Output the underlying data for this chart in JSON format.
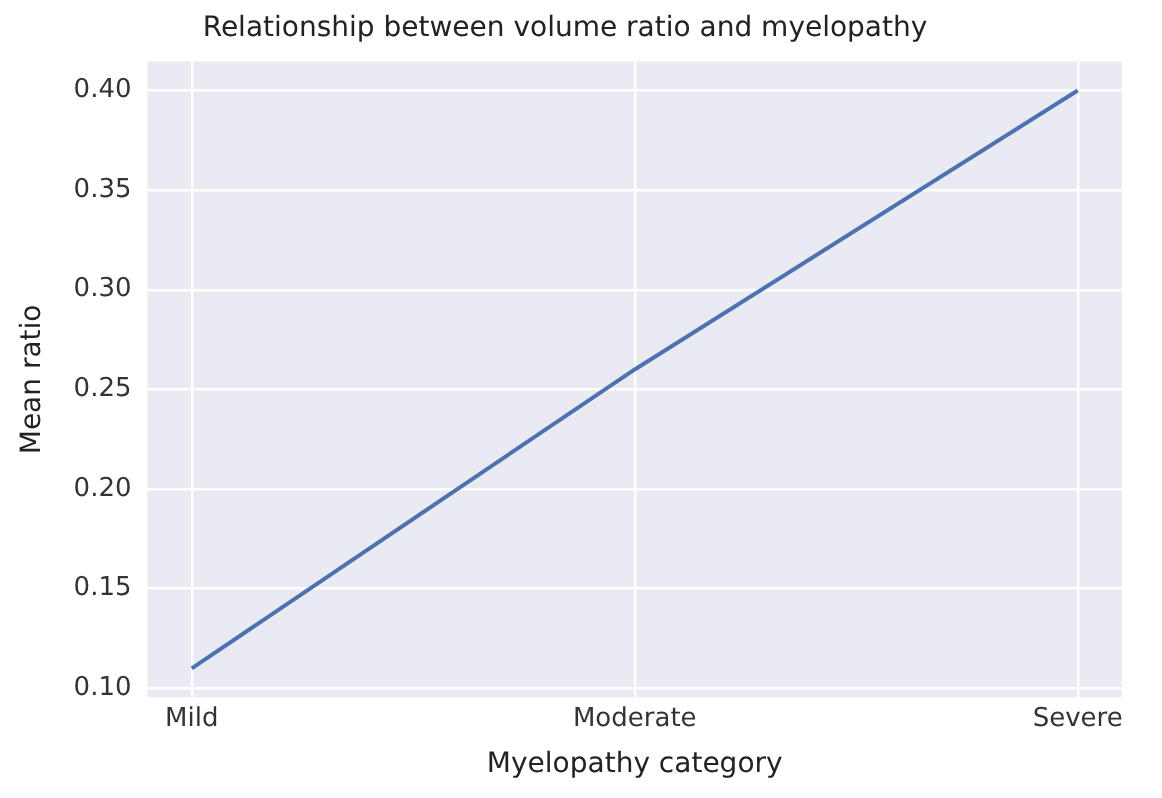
{
  "chart_data": {
    "type": "line",
    "title": "Relationship between volume ratio and myelopathy",
    "xlabel": "Myelopathy category",
    "ylabel": "Mean ratio",
    "categories": [
      "Mild",
      "Moderate",
      "Severe"
    ],
    "series": [
      {
        "color": "#4c72b0",
        "values": [
          0.11,
          0.26,
          0.4
        ]
      }
    ],
    "ylim": [
      0.0955,
      0.4145
    ],
    "yticks": [
      {
        "value": 0.1,
        "label": "0.10"
      },
      {
        "value": 0.15,
        "label": "0.15"
      },
      {
        "value": 0.2,
        "label": "0.20"
      },
      {
        "value": 0.25,
        "label": "0.25"
      },
      {
        "value": 0.3,
        "label": "0.30"
      },
      {
        "value": 0.35,
        "label": "0.35"
      },
      {
        "value": 0.4,
        "label": "0.40"
      }
    ],
    "grid": true,
    "legend": false,
    "marker": "none",
    "line_style": "solid"
  }
}
